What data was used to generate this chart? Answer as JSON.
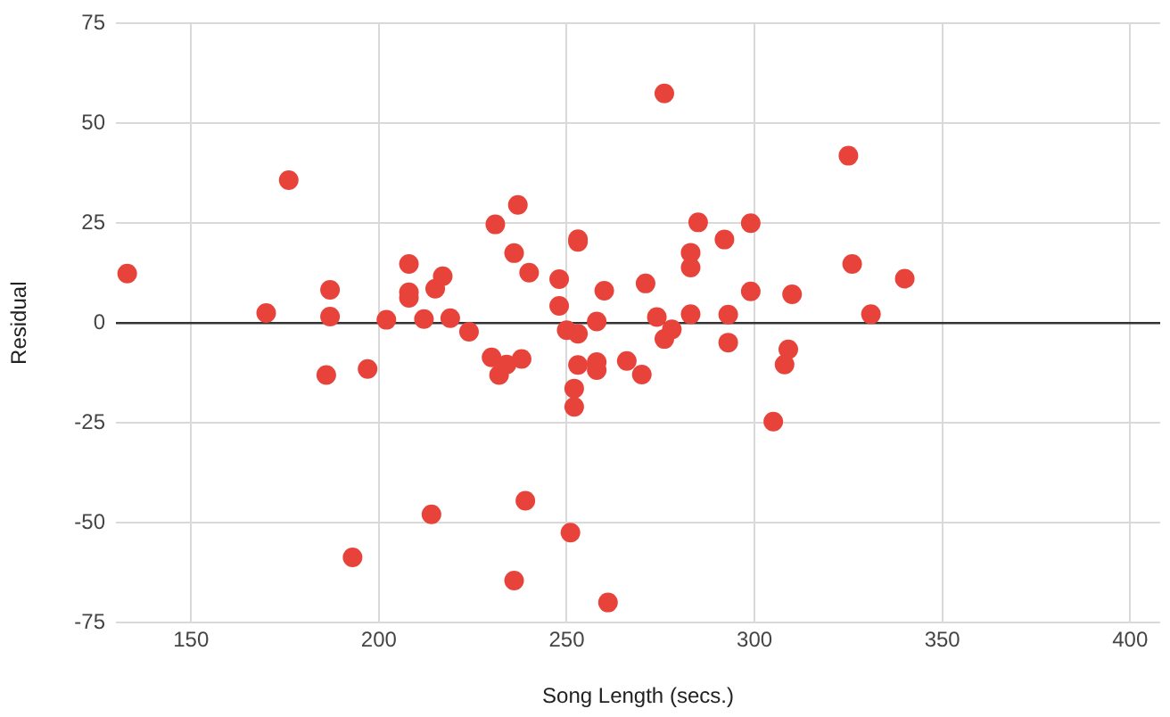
{
  "chart_data": {
    "type": "scatter",
    "xlabel": "Song Length (secs.)",
    "ylabel": "Residual",
    "xlim": [
      130,
      408
    ],
    "xticks": [
      150,
      200,
      250,
      300,
      350,
      400
    ],
    "ylim": [
      -75,
      75
    ],
    "yticks": [
      -75,
      -50,
      -25,
      0,
      25,
      50,
      75
    ],
    "grid": true,
    "marker": "circle",
    "series": [
      {
        "color": "#e8433a",
        "x": [
          133,
          170,
          176,
          187,
          187,
          202,
          208,
          208,
          208,
          212,
          215,
          217,
          219,
          224,
          231,
          236,
          237,
          240,
          248,
          248,
          250,
          253,
          253,
          253,
          276,
          325,
          285,
          299,
          292,
          283,
          283,
          326,
          340,
          260,
          271,
          299,
          310,
          258,
          274,
          283,
          293,
          331,
          278,
          276,
          293,
          309,
          186,
          197,
          230,
          232,
          234,
          238,
          253,
          252,
          252,
          214,
          239,
          193,
          251,
          236,
          261,
          258,
          258,
          266,
          270,
          308,
          305
        ],
        "values": [
          12.4,
          2.5,
          35.8,
          8.3,
          1.6,
          0.8,
          14.8,
          7.7,
          6.3,
          1,
          8.6,
          11.7,
          1.2,
          -2.2,
          24.7,
          17.5,
          29.6,
          12.6,
          11,
          4.3,
          -1.8,
          -2.7,
          20.3,
          21,
          57.5,
          41.9,
          25.2,
          25,
          20.9,
          17.6,
          13.9,
          14.8,
          11.1,
          8.1,
          9.9,
          7.9,
          7.2,
          0.4,
          1.5,
          2.2,
          2.1,
          2.2,
          -1.6,
          -4,
          -4.9,
          -6.6,
          -13,
          -11.5,
          -8.6,
          -13,
          -10.4,
          -9,
          -10.5,
          -16.4,
          -21,
          -47.9,
          -44.5,
          -58.7,
          -52.5,
          -64.5,
          -70,
          -9.8,
          -11.8,
          -9.5,
          -12.9,
          -10.4,
          -24.7
        ]
      }
    ]
  }
}
